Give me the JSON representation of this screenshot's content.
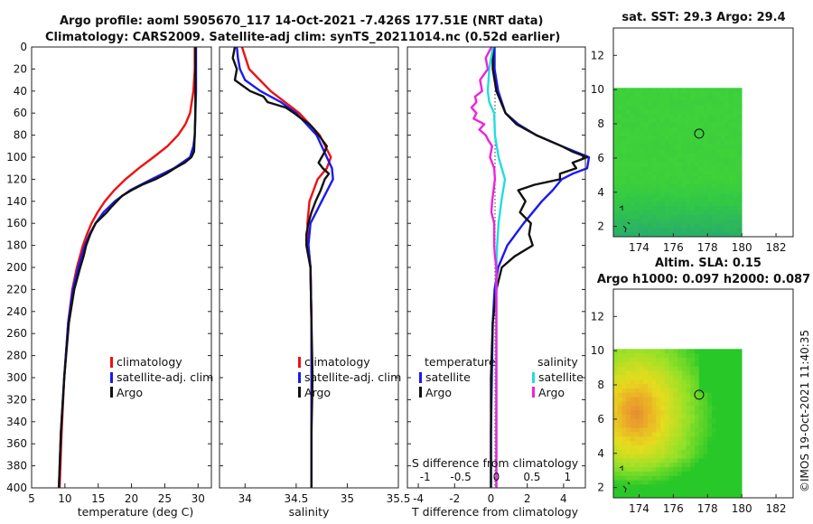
{
  "header": {
    "line1": "Argo profile: aoml 5905670_117 14-Oct-2021 -7.426S 177.51E (NRT data)",
    "line2": "Climatology: CARS2009. Satellite-adj clim: synTS_20211014.nc (0.52d earlier)"
  },
  "colors": {
    "climatology": "#ee1111",
    "satellite": "#1a1aee",
    "argo": "#111111",
    "sal_satellite": "#22dddd",
    "sal_argo": "#ee22dd"
  },
  "depth_ticks": [
    "0",
    "20",
    "40",
    "60",
    "80",
    "100",
    "120",
    "140",
    "160",
    "180",
    "200",
    "220",
    "240",
    "260",
    "280",
    "300",
    "320",
    "340",
    "360",
    "380",
    "400"
  ],
  "chart_data": [
    {
      "type": "line",
      "name": "temperature-profile",
      "xlabel": "temperature (deg C)",
      "ylabel": "depth",
      "xlim": [
        5,
        32
      ],
      "ylim": [
        400,
        0
      ],
      "xticks": [
        "5",
        "10",
        "15",
        "20",
        "25",
        "30"
      ],
      "legend": [
        "climatology",
        "satellite-adj. clim",
        "Argo"
      ],
      "series": [
        {
          "name": "climatology",
          "color": "#ee1111",
          "depth": [
            0,
            20,
            40,
            60,
            70,
            80,
            90,
            100,
            110,
            120,
            130,
            140,
            150,
            160,
            170,
            180,
            200,
            220,
            250,
            300,
            350,
            400
          ],
          "values": [
            29.5,
            29.5,
            29.3,
            28.8,
            28.1,
            27.0,
            25.4,
            23.3,
            21.1,
            19.1,
            17.4,
            16.0,
            14.9,
            14.0,
            13.3,
            12.7,
            11.8,
            11.1,
            10.5,
            9.9,
            9.5,
            9.2
          ]
        },
        {
          "name": "satellite-adj. clim",
          "color": "#1a1aee",
          "depth": [
            0,
            20,
            40,
            60,
            80,
            90,
            100,
            110,
            120,
            130,
            140,
            150,
            160,
            170,
            180,
            200,
            220,
            250,
            300,
            350,
            400
          ],
          "values": [
            29.7,
            29.7,
            29.7,
            29.6,
            29.5,
            29.3,
            28.8,
            26.4,
            23.0,
            19.8,
            17.5,
            15.8,
            14.6,
            13.7,
            13.0,
            12.0,
            11.2,
            10.5,
            9.9,
            9.4,
            9.1
          ]
        },
        {
          "name": "Argo",
          "color": "#111111",
          "depth": [
            0,
            20,
            40,
            60,
            80,
            95,
            100,
            105,
            110,
            115,
            120,
            125,
            130,
            135,
            140,
            145,
            150,
            160,
            170,
            180,
            190,
            200,
            220,
            250,
            300,
            350,
            400
          ],
          "values": [
            29.6,
            29.6,
            29.6,
            29.6,
            29.5,
            29.4,
            29.0,
            28.0,
            26.5,
            25.2,
            23.6,
            21.6,
            20.0,
            18.6,
            17.8,
            17.0,
            16.3,
            14.6,
            13.8,
            13.2,
            12.8,
            12.3,
            11.4,
            10.6,
            9.9,
            9.4,
            9.1
          ]
        }
      ]
    },
    {
      "type": "line",
      "name": "salinity-profile",
      "xlabel": "salinity",
      "ylabel": "depth",
      "xlim": [
        33.75,
        35.5
      ],
      "ylim": [
        400,
        0
      ],
      "xticks": [
        "34",
        "34.5",
        "35",
        "35.5"
      ],
      "legend": [
        "climatology",
        "satellite-adj. clim",
        "Argo"
      ],
      "series": [
        {
          "name": "climatology",
          "color": "#ee1111",
          "depth": [
            0,
            20,
            40,
            60,
            80,
            100,
            110,
            120,
            140,
            160,
            180,
            200,
            250,
            300,
            350,
            400
          ],
          "values": [
            33.97,
            34.04,
            34.25,
            34.53,
            34.73,
            34.84,
            34.8,
            34.71,
            34.63,
            34.61,
            34.62,
            34.64,
            34.65,
            34.65,
            34.65,
            34.65
          ]
        },
        {
          "name": "satellite-adj. clim",
          "color": "#1a1aee",
          "depth": [
            0,
            10,
            20,
            30,
            40,
            50,
            60,
            80,
            100,
            110,
            120,
            140,
            160,
            180,
            200,
            250,
            300,
            350,
            400
          ],
          "values": [
            33.92,
            33.93,
            33.95,
            34.0,
            34.15,
            34.35,
            34.5,
            34.7,
            34.8,
            34.85,
            34.86,
            34.75,
            34.64,
            34.62,
            34.64,
            34.65,
            34.65,
            34.65,
            34.65
          ]
        },
        {
          "name": "Argo",
          "color": "#111111",
          "depth": [
            0,
            10,
            20,
            30,
            40,
            45,
            50,
            55,
            60,
            65,
            70,
            75,
            80,
            85,
            90,
            95,
            100,
            105,
            110,
            115,
            120,
            130,
            140,
            150,
            160,
            170,
            180,
            190,
            200,
            250,
            300,
            350,
            400
          ],
          "values": [
            33.9,
            33.88,
            33.92,
            33.9,
            34.05,
            34.18,
            34.22,
            34.4,
            34.48,
            34.55,
            34.63,
            34.68,
            34.72,
            34.76,
            34.8,
            34.78,
            34.75,
            34.72,
            34.76,
            34.82,
            34.78,
            34.74,
            34.69,
            34.65,
            34.62,
            34.6,
            34.6,
            34.62,
            34.64,
            34.65,
            34.66,
            34.65,
            34.65
          ]
        }
      ]
    },
    {
      "type": "line",
      "name": "difference-profile",
      "xlabel": "T difference from climatology",
      "xlabel_top": "S difference from climatology",
      "ylabel": "depth",
      "xlim": [
        -4.6,
        5.2
      ],
      "ylim": [
        400,
        0
      ],
      "xticks": [
        "-4",
        "-2",
        "0",
        "2",
        "4"
      ],
      "xticks_top": [
        "-1",
        "-0.5",
        "0",
        "0.5",
        "1"
      ],
      "legend_temperature": [
        "temperature",
        "satellite",
        "Argo"
      ],
      "legend_salinity": [
        "salinity",
        "satellite",
        "Argo"
      ],
      "series": [
        {
          "name": "temperature satellite",
          "color": "#1a1aee",
          "depth": [
            0,
            20,
            40,
            60,
            70,
            80,
            90,
            100,
            110,
            115,
            120,
            130,
            140,
            160,
            180,
            200,
            220,
            250,
            300,
            350,
            400
          ],
          "values": [
            0.2,
            0.2,
            0.4,
            0.8,
            1.5,
            2.5,
            3.9,
            5.4,
            5.3,
            4.5,
            3.9,
            3.4,
            2.8,
            1.8,
            0.9,
            0.4,
            0.2,
            0.1,
            0.05,
            0.0,
            0.0
          ]
        },
        {
          "name": "temperature Argo",
          "color": "#111111",
          "depth": [
            0,
            20,
            40,
            60,
            70,
            80,
            90,
            95,
            100,
            105,
            110,
            115,
            120,
            125,
            130,
            140,
            150,
            160,
            170,
            180,
            190,
            200,
            220,
            250,
            300,
            350,
            400
          ],
          "values": [
            0.1,
            0.1,
            0.3,
            0.8,
            1.4,
            2.5,
            3.9,
            4.5,
            5.3,
            4.5,
            4.7,
            3.8,
            3.8,
            2.4,
            1.5,
            1.9,
            1.6,
            2.2,
            2.1,
            2.3,
            1.3,
            0.6,
            0.3,
            0.1,
            0.0,
            0.0,
            0.0
          ]
        },
        {
          "name": "salinity satellite",
          "color": "#22dddd",
          "depth": [
            0,
            20,
            40,
            50,
            60,
            80,
            100,
            120,
            140,
            160,
            180,
            200,
            250,
            300,
            350,
            400
          ],
          "values": [
            -0.05,
            -0.1,
            -0.12,
            -0.1,
            -0.03,
            -0.02,
            0.03,
            0.12,
            0.07,
            0.03,
            0.01,
            0.0,
            0.0,
            0.0,
            0.0,
            0.0
          ]
        },
        {
          "name": "salinity Argo",
          "color": "#ee22dd",
          "depth": [
            0,
            10,
            20,
            30,
            40,
            45,
            50,
            55,
            60,
            65,
            70,
            75,
            80,
            85,
            90,
            100,
            110,
            120,
            130,
            140,
            150,
            160,
            170,
            180,
            190,
            200,
            250,
            300,
            350,
            400
          ],
          "values": [
            -0.07,
            -0.15,
            -0.12,
            -0.23,
            -0.2,
            -0.3,
            -0.28,
            -0.35,
            -0.28,
            -0.32,
            -0.17,
            -0.24,
            -0.15,
            -0.11,
            -0.06,
            -0.09,
            -0.03,
            -0.02,
            -0.04,
            -0.06,
            -0.07,
            -0.03,
            -0.03,
            -0.03,
            -0.02,
            0.0,
            0.0,
            0.0,
            0.0,
            0.0
          ]
        }
      ]
    },
    {
      "type": "heatmap",
      "name": "sst-map",
      "title": "sat. SST: 29.3  Argo: 29.4",
      "xlim": [
        172.5,
        183
      ],
      "ylim": [
        1.4,
        13.6
      ],
      "xticks": [
        "174",
        "176",
        "178",
        "180",
        "182"
      ],
      "yticks": [
        "2",
        "4",
        "6",
        "8",
        "10",
        "12"
      ],
      "data_extent": {
        "lon": [
          172.5,
          180
        ],
        "lat": [
          1.4,
          10.1
        ]
      },
      "marker": {
        "lon": 177.51,
        "lat": 7.426
      }
    },
    {
      "type": "heatmap",
      "name": "sla-map",
      "title": "Altim. SLA: 0.15",
      "subtitle": "Argo h1000: 0.097 h2000: 0.087",
      "xlim": [
        172.5,
        183
      ],
      "ylim": [
        1.4,
        13.6
      ],
      "xticks": [
        "174",
        "176",
        "178",
        "180",
        "182"
      ],
      "yticks": [
        "2",
        "4",
        "6",
        "8",
        "10",
        "12"
      ],
      "data_extent": {
        "lon": [
          172.5,
          180
        ],
        "lat": [
          1.4,
          10.1
        ]
      },
      "marker": {
        "lon": 177.51,
        "lat": 7.426
      }
    }
  ],
  "footer": {
    "stamp": "©IMOS 19-Oct-2021 11:40:35"
  }
}
